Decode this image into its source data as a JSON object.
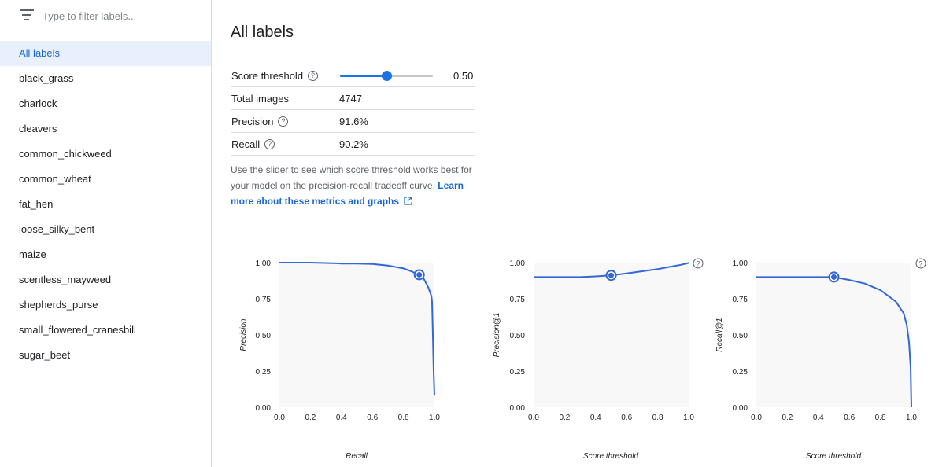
{
  "filter": {
    "placeholder": "Type to filter labels..."
  },
  "labels": [
    "All labels",
    "black_grass",
    "charlock",
    "cleavers",
    "common_chickweed",
    "common_wheat",
    "fat_hen",
    "loose_silky_bent",
    "maize",
    "scentless_mayweed",
    "shepherds_purse",
    "small_flowered_cranesbill",
    "sugar_beet"
  ],
  "selected_label": "All labels",
  "main": {
    "title": "All labels",
    "metrics": {
      "score_threshold_label": "Score threshold",
      "score_threshold_value": "0.50",
      "score_threshold_fraction": 0.5,
      "total_images_label": "Total images",
      "total_images_value": "4747",
      "precision_label": "Precision",
      "precision_value": "91.6%",
      "recall_label": "Recall",
      "recall_value": "90.2%"
    },
    "help_text": "Use the slider to see which score threshold works best for your model on the precision-recall tradeoff curve.",
    "learn_more": "Learn more about these metrics and graphs"
  },
  "colors": {
    "accent": "#1a73e8",
    "line": "#3367d6",
    "plot_bg": "#f8f8f8"
  },
  "chart_data": [
    {
      "type": "line",
      "xlabel": "Recall",
      "ylabel": "Precision",
      "xticks": [
        "0.0",
        "0.2",
        "0.4",
        "0.6",
        "0.8",
        "1.0"
      ],
      "yticks": [
        "0.00",
        "0.25",
        "0.50",
        "0.75",
        "1.00"
      ],
      "xlim": [
        0,
        1
      ],
      "ylim": [
        0,
        1
      ],
      "help_icon": false,
      "series": [
        {
          "x": [
            0.0,
            0.2,
            0.37,
            0.4,
            0.5,
            0.6,
            0.7,
            0.8,
            0.85,
            0.9,
            0.93,
            0.96,
            0.98,
            0.985,
            0.99,
            0.995,
            1.0
          ],
          "y": [
            1.0,
            1.0,
            0.995,
            0.993,
            0.993,
            0.99,
            0.98,
            0.96,
            0.94,
            0.916,
            0.89,
            0.83,
            0.77,
            0.73,
            0.5,
            0.25,
            0.08
          ]
        }
      ],
      "marker": {
        "x": 0.902,
        "y": 0.916
      }
    },
    {
      "type": "line",
      "xlabel": "Score threshold",
      "ylabel": "Precision@1",
      "xticks": [
        "0.0",
        "0.2",
        "0.4",
        "0.6",
        "0.8",
        "1.0"
      ],
      "yticks": [
        "0.00",
        "0.25",
        "0.50",
        "0.75",
        "1.00"
      ],
      "xlim": [
        0,
        1
      ],
      "ylim": [
        0,
        1
      ],
      "help_icon": true,
      "series": [
        {
          "x": [
            0.0,
            0.1,
            0.2,
            0.3,
            0.4,
            0.5,
            0.6,
            0.7,
            0.8,
            0.85,
            0.9,
            0.95,
            1.0
          ],
          "y": [
            0.9,
            0.9,
            0.9,
            0.9,
            0.905,
            0.912,
            0.925,
            0.94,
            0.955,
            0.965,
            0.975,
            0.985,
            0.998
          ]
        }
      ],
      "marker": {
        "x": 0.5,
        "y": 0.912
      }
    },
    {
      "type": "line",
      "xlabel": "Score threshold",
      "ylabel": "Recall@1",
      "xticks": [
        "0.0",
        "0.2",
        "0.4",
        "0.6",
        "0.8",
        "1.0"
      ],
      "yticks": [
        "0.00",
        "0.25",
        "0.50",
        "0.75",
        "1.00"
      ],
      "xlim": [
        0,
        1
      ],
      "ylim": [
        0,
        1
      ],
      "help_icon": true,
      "series": [
        {
          "x": [
            0.0,
            0.1,
            0.2,
            0.3,
            0.4,
            0.5,
            0.6,
            0.7,
            0.8,
            0.85,
            0.9,
            0.95,
            0.97,
            0.985,
            0.995,
            1.0
          ],
          "y": [
            0.9,
            0.9,
            0.9,
            0.9,
            0.9,
            0.9,
            0.88,
            0.855,
            0.81,
            0.77,
            0.73,
            0.65,
            0.57,
            0.45,
            0.28,
            0.0
          ]
        }
      ],
      "marker": {
        "x": 0.5,
        "y": 0.9
      }
    }
  ]
}
